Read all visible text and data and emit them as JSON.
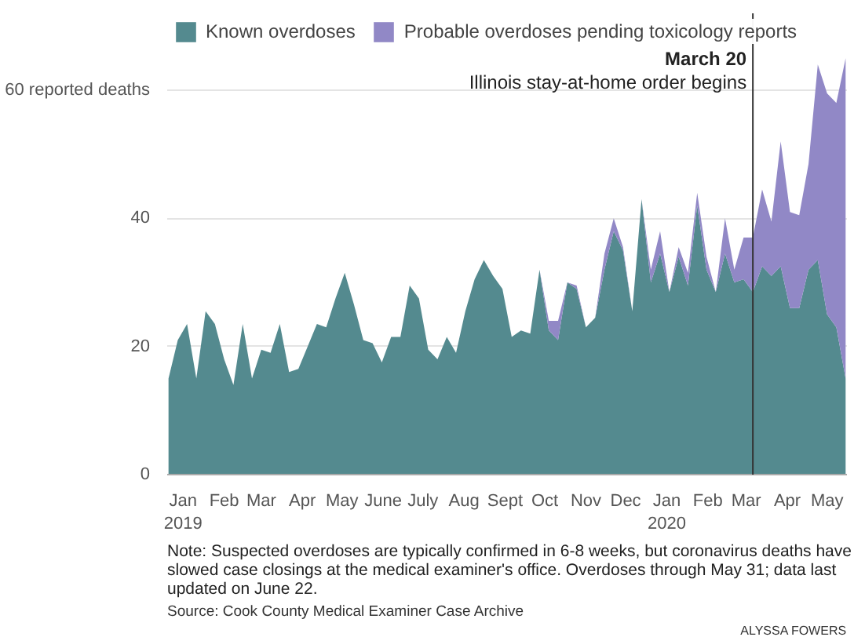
{
  "chart_data": {
    "type": "area",
    "stacked": true,
    "x": [
      "2019-01-04",
      "2019-01-11",
      "2019-01-18",
      "2019-01-25",
      "2019-02-01",
      "2019-02-08",
      "2019-02-15",
      "2019-02-22",
      "2019-03-01",
      "2019-03-08",
      "2019-03-15",
      "2019-03-22",
      "2019-03-29",
      "2019-04-05",
      "2019-04-12",
      "2019-04-19",
      "2019-04-26",
      "2019-05-03",
      "2019-05-10",
      "2019-05-17",
      "2019-05-24",
      "2019-05-31",
      "2019-06-07",
      "2019-06-14",
      "2019-06-21",
      "2019-06-28",
      "2019-07-05",
      "2019-07-12",
      "2019-07-19",
      "2019-07-26",
      "2019-08-02",
      "2019-08-09",
      "2019-08-16",
      "2019-08-23",
      "2019-08-30",
      "2019-09-06",
      "2019-09-13",
      "2019-09-20",
      "2019-09-27",
      "2019-10-04",
      "2019-10-11",
      "2019-10-18",
      "2019-10-25",
      "2019-11-01",
      "2019-11-08",
      "2019-11-15",
      "2019-11-22",
      "2019-11-29",
      "2019-12-06",
      "2019-12-13",
      "2019-12-20",
      "2019-12-27",
      "2020-01-03",
      "2020-01-10",
      "2020-01-17",
      "2020-01-24",
      "2020-01-31",
      "2020-02-07",
      "2020-02-14",
      "2020-02-21",
      "2020-02-28",
      "2020-03-06",
      "2020-03-13",
      "2020-03-20",
      "2020-03-27",
      "2020-04-03",
      "2020-04-10",
      "2020-04-17",
      "2020-04-24",
      "2020-05-01",
      "2020-05-08",
      "2020-05-15",
      "2020-05-22",
      "2020-05-29"
    ],
    "series": [
      {
        "name": "Known overdoses",
        "color": "#548a8f",
        "values": [
          15,
          21,
          23.5,
          15,
          25.5,
          23.5,
          18,
          14,
          23.5,
          15,
          19.5,
          19,
          23.5,
          16,
          16.5,
          20,
          23.5,
          23,
          27.5,
          31.5,
          26.5,
          21,
          20.5,
          17.5,
          21.5,
          21.5,
          29.5,
          27.5,
          19.5,
          18,
          21.5,
          19,
          25.5,
          30.5,
          33.5,
          31,
          29,
          21.5,
          22.5,
          22,
          32,
          22.5,
          21,
          30,
          29,
          23,
          24.5,
          32,
          38,
          35,
          25.5,
          43,
          30,
          34.5,
          28.5,
          34,
          29.5,
          42,
          32,
          28.5,
          34.5,
          30,
          30.5,
          28.5,
          32.5,
          31,
          32.5,
          26,
          26,
          32,
          33.5,
          25,
          23,
          15
        ]
      },
      {
        "name": "Probable overdoses pending toxicology reports",
        "color": "#9188c6",
        "values": [
          0,
          0,
          0,
          0,
          0,
          0,
          0,
          0,
          0,
          0,
          0,
          0,
          0,
          0,
          0,
          0,
          0,
          0,
          0,
          0,
          0,
          0,
          0,
          0,
          0,
          0,
          0,
          0,
          0,
          0,
          0,
          0,
          0,
          0,
          0,
          0,
          0,
          0,
          0,
          0,
          0,
          1.5,
          3,
          0,
          0.5,
          0,
          0,
          2.5,
          2,
          0.5,
          0,
          0,
          2,
          3.5,
          0,
          1.5,
          2,
          2,
          2,
          0,
          5.5,
          2,
          6.5,
          8.5,
          12,
          8.5,
          19.5,
          15,
          14.5,
          16.5,
          30.5,
          34.5,
          35,
          50
        ]
      }
    ],
    "xlim": [
      "2019-01-03",
      "2020-05-30"
    ],
    "xticks": [
      {
        "value": "2019-01-15",
        "label": "Jan\n2019"
      },
      {
        "value": "2019-02-15",
        "label": "Feb"
      },
      {
        "value": "2019-03-15",
        "label": "Mar"
      },
      {
        "value": "2019-04-15",
        "label": "Apr"
      },
      {
        "value": "2019-05-15",
        "label": "May"
      },
      {
        "value": "2019-06-15",
        "label": "June"
      },
      {
        "value": "2019-07-15",
        "label": "July"
      },
      {
        "value": "2019-08-15",
        "label": "Aug"
      },
      {
        "value": "2019-09-15",
        "label": "Sept"
      },
      {
        "value": "2019-10-15",
        "label": "Oct"
      },
      {
        "value": "2019-11-15",
        "label": "Nov"
      },
      {
        "value": "2019-12-15",
        "label": "Dec"
      },
      {
        "value": "2020-01-15",
        "label": "Jan\n2020"
      },
      {
        "value": "2020-02-15",
        "label": "Feb"
      },
      {
        "value": "2020-03-15",
        "label": "Mar"
      },
      {
        "value": "2020-04-15",
        "label": "Apr"
      },
      {
        "value": "2020-05-15",
        "label": "May"
      }
    ],
    "ylim": [
      0,
      72
    ],
    "yticks": [
      0,
      20,
      40,
      {
        "value": 60,
        "label": "60 reported deaths"
      }
    ],
    "grid": "y",
    "legend": "top left",
    "ref_lines": [
      {
        "axis": "x",
        "value": "2020-03-20",
        "label": "March 20\nIllinois stay-at-home order begins",
        "color": "#333333"
      }
    ],
    "annotations": [
      "Note: Suspected overdoses are typically confirmed in 6-8 weeks, but coronavirus deaths have slowed case closings at the medical examiner's office. Overdoses through May 31; data last updated on June 22.",
      "Source: Cook County Medical Examiner Case Archive",
      "ALYSSA FOWERS"
    ]
  }
}
